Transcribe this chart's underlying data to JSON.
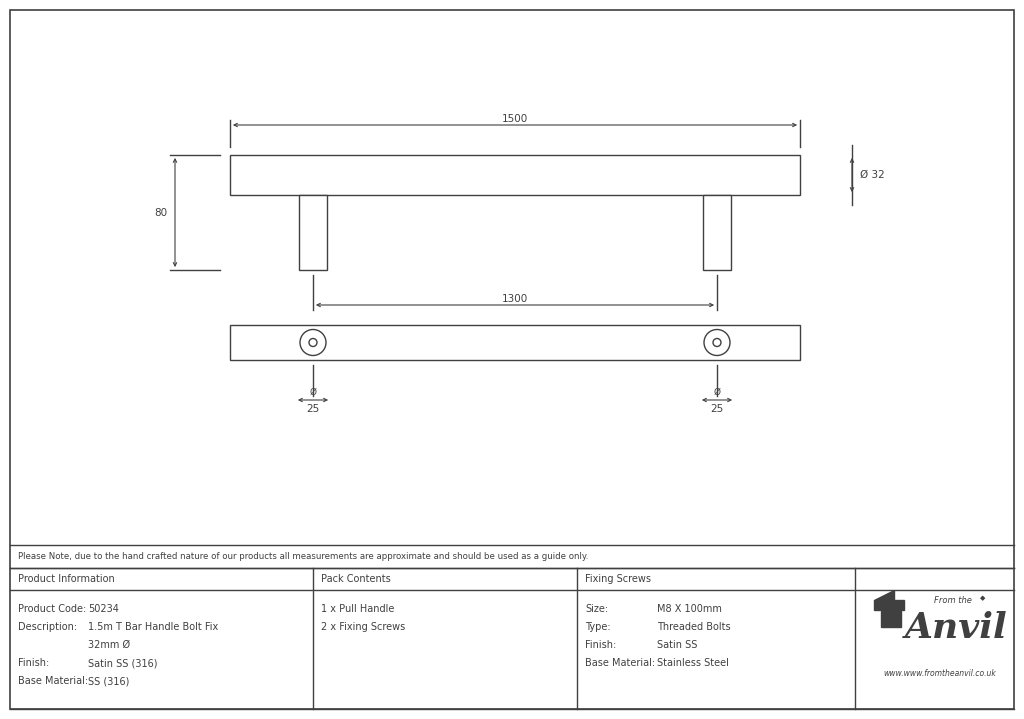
{
  "bg_color": "#ffffff",
  "line_color": "#404040",
  "figure_width": 10.24,
  "figure_height": 7.19,
  "note_text": "Please Note, due to the hand crafted nature of our products all measurements are approximate and should be used as a guide only.",
  "table_data": {
    "product_info_header": "Product Information",
    "product_code_label": "Product Code:",
    "product_code_value": "50234",
    "description_label": "Description:",
    "description_value1": "1.5m T Bar Handle Bolt Fix",
    "description_value2": "32mm Ø",
    "finish_label": "Finish:",
    "finish_value": "Satin SS (316)",
    "base_material_label": "Base Material:",
    "base_material_value": "SS (316)",
    "pack_contents_header": "Pack Contents",
    "pack_item1": "1 x Pull Handle",
    "pack_item2": "2 x Fixing Screws",
    "fixing_screws_header": "Fixing Screws",
    "size_label": "Size:",
    "size_value": "M8 X 100mm",
    "type_label": "Type:",
    "type_value": "Threaded Bolts",
    "finish2_label": "Finish:",
    "finish2_value": "Satin SS",
    "base_material2_label": "Base Material:",
    "base_material2_value": "Stainless Steel",
    "anvil_url": "www.fromtheanvil.co.uk"
  }
}
